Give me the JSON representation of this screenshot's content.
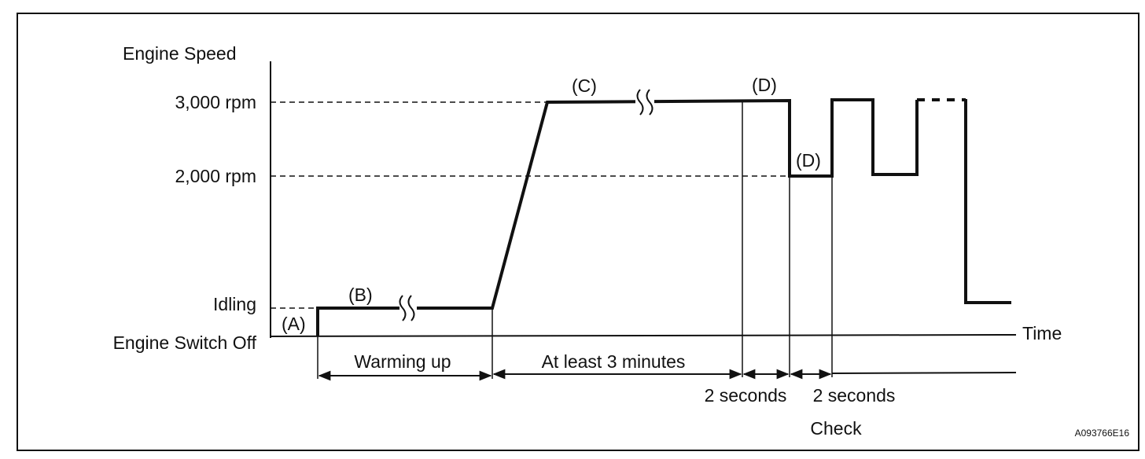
{
  "axes": {
    "y_title": "Engine Speed",
    "x_title": "Time",
    "levels": {
      "rpm3000": "3,000 rpm",
      "rpm2000": "2,000 rpm",
      "idling": "Idling",
      "off": "Engine Switch Off"
    }
  },
  "stages": {
    "a": "(A)",
    "b": "(B)",
    "c": "(C)",
    "d1": "(D)",
    "d2": "(D)"
  },
  "intervals": {
    "warming_up": "Warming up",
    "at_least_3_min": "At least 3 minutes",
    "two_seconds_1": "2 seconds",
    "two_seconds_2": "2 seconds",
    "check": "Check"
  },
  "figure_id": "A093766E16"
}
